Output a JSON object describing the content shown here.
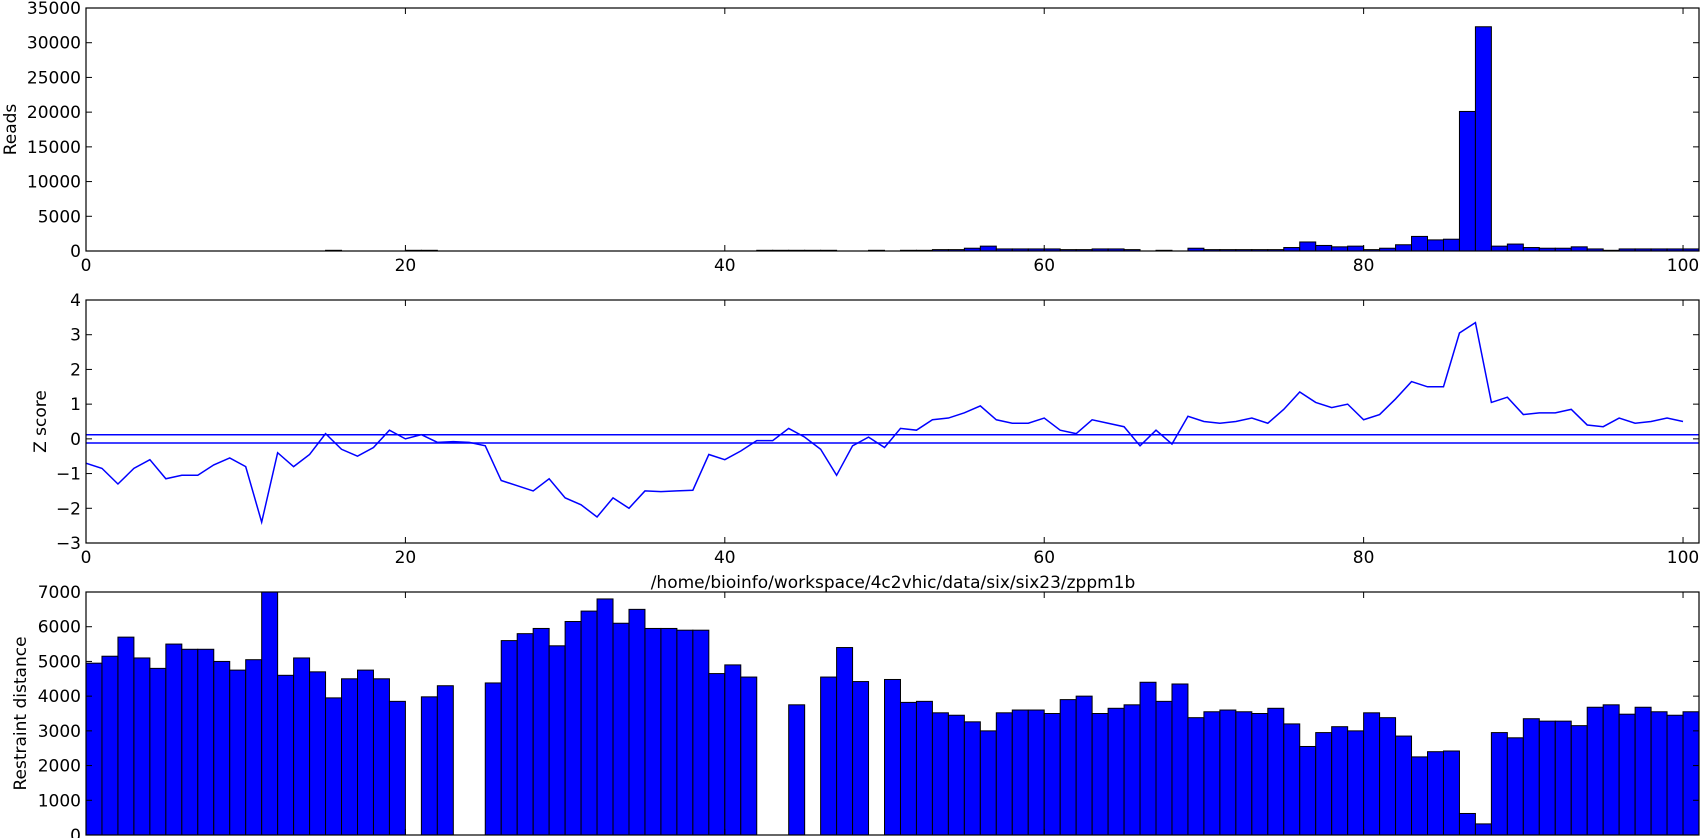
{
  "caption": "/home/bioinfo/workspace/4c2vhic/data/six/six23/zppm1b",
  "colors": {
    "bar_fill": "#0000ff",
    "line": "#0000ff",
    "axes": "#000000",
    "background": "#ffffff"
  },
  "chart_data": [
    {
      "type": "bar",
      "ylabel": "Reads",
      "xlim": [
        0,
        101
      ],
      "ylim": [
        0,
        35000
      ],
      "xticks": [
        "0",
        "20",
        "40",
        "60",
        "80",
        "100"
      ],
      "yticks": [
        "0",
        "5000",
        "10000",
        "15000",
        "20000",
        "25000",
        "30000",
        "35000"
      ],
      "grid": false,
      "values": [
        0,
        0,
        0,
        0,
        0,
        0,
        0,
        0,
        0,
        0,
        0,
        0,
        0,
        0,
        0,
        100,
        0,
        0,
        0,
        0,
        100,
        100,
        0,
        0,
        0,
        0,
        0,
        0,
        0,
        0,
        0,
        0,
        0,
        0,
        0,
        0,
        0,
        0,
        0,
        0,
        0,
        0,
        100,
        100,
        100,
        100,
        100,
        0,
        0,
        100,
        0,
        100,
        100,
        200,
        200,
        400,
        700,
        300,
        300,
        300,
        300,
        200,
        200,
        300,
        300,
        200,
        0,
        100,
        0,
        400,
        200,
        200,
        200,
        200,
        200,
        500,
        1300,
        800,
        600,
        700,
        200,
        400,
        900,
        2100,
        1600,
        1700,
        20100,
        32300,
        700,
        1000,
        500,
        400,
        400,
        600,
        300,
        100,
        300,
        300,
        300,
        300,
        300
      ]
    },
    {
      "type": "line",
      "ylabel": "Z score",
      "xlim": [
        0,
        101
      ],
      "ylim": [
        -3,
        4
      ],
      "xticks": [
        "0",
        "20",
        "40",
        "60",
        "80",
        "100"
      ],
      "yticks": [
        "−3",
        "−2",
        "−1",
        "0",
        "1",
        "2",
        "3",
        "4"
      ],
      "grid": false,
      "hlines": [
        0.12,
        -0.12
      ],
      "values": [
        -0.7,
        -0.85,
        -1.3,
        -0.85,
        -0.6,
        -1.15,
        -1.05,
        -1.05,
        -0.75,
        -0.55,
        -0.8,
        -2.4,
        -0.4,
        -0.8,
        -0.45,
        0.15,
        -0.3,
        -0.5,
        -0.25,
        0.25,
        0.0,
        0.12,
        -0.1,
        -0.08,
        -0.1,
        -0.2,
        -1.2,
        -1.35,
        -1.5,
        -1.15,
        -1.7,
        -1.9,
        -2.25,
        -1.7,
        -2.0,
        -1.5,
        -1.52,
        -1.5,
        -1.48,
        -0.45,
        -0.6,
        -0.35,
        -0.05,
        -0.05,
        0.3,
        0.05,
        -0.3,
        -1.05,
        -0.2,
        0.05,
        -0.25,
        0.3,
        0.25,
        0.55,
        0.6,
        0.75,
        0.95,
        0.55,
        0.45,
        0.45,
        0.6,
        0.25,
        0.15,
        0.55,
        0.45,
        0.35,
        -0.2,
        0.25,
        -0.15,
        0.65,
        0.5,
        0.45,
        0.5,
        0.6,
        0.45,
        0.85,
        1.35,
        1.05,
        0.9,
        1.0,
        0.55,
        0.7,
        1.15,
        1.65,
        1.5,
        1.5,
        3.05,
        3.35,
        1.05,
        1.2,
        0.7,
        0.75,
        0.75,
        0.85,
        0.4,
        0.35,
        0.6,
        0.45,
        0.5,
        0.6,
        0.5
      ]
    },
    {
      "type": "bar",
      "ylabel": "Restraint distance",
      "xlim": [
        0,
        101
      ],
      "ylim": [
        0,
        7000
      ],
      "xticks": [
        "0",
        "20",
        "40",
        "60",
        "80",
        "100"
      ],
      "yticks": [
        "0",
        "1000",
        "2000",
        "3000",
        "4000",
        "5000",
        "6000",
        "7000"
      ],
      "grid": false,
      "values": [
        4950,
        5150,
        5700,
        5100,
        4800,
        5500,
        5350,
        5350,
        5000,
        4750,
        5050,
        7000,
        4600,
        5100,
        4700,
        3950,
        4500,
        4750,
        4500,
        3850,
        0,
        3980,
        4300,
        0,
        0,
        4380,
        5600,
        5800,
        5950,
        5450,
        6150,
        6450,
        6800,
        6100,
        6500,
        5950,
        5950,
        5900,
        5900,
        4650,
        4900,
        4550,
        0,
        0,
        3750,
        0,
        4550,
        5400,
        4420,
        0,
        4480,
        3820,
        3850,
        3520,
        3450,
        3260,
        3000,
        3520,
        3600,
        3600,
        3500,
        3900,
        4000,
        3500,
        3650,
        3750,
        4400,
        3850,
        4350,
        3380,
        3550,
        3600,
        3550,
        3500,
        3650,
        3200,
        2550,
        2950,
        3120,
        3000,
        3520,
        3380,
        2850,
        2250,
        2400,
        2420,
        620,
        320,
        2950,
        2800,
        3350,
        3280,
        3280,
        3150,
        3680,
        3750,
        3480,
        3680,
        3550,
        3450,
        3550
      ]
    }
  ]
}
